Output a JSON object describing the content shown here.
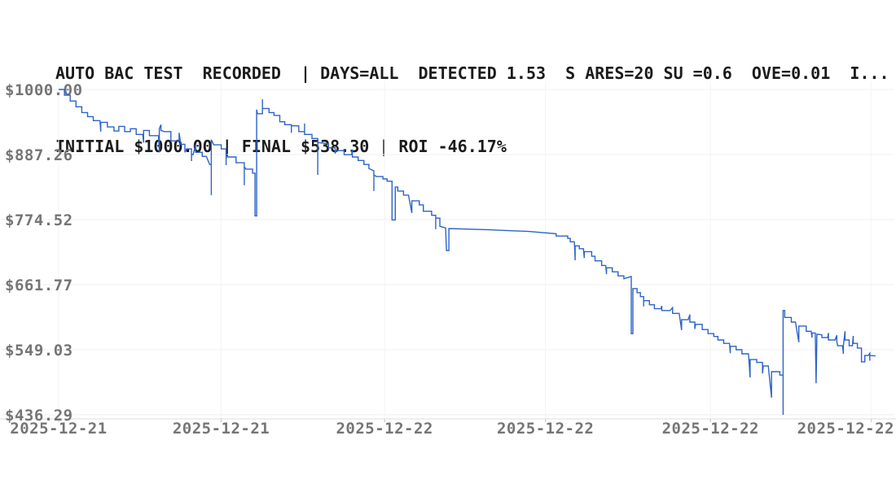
{
  "header": {
    "line1": "AUTO BAC TEST  RECORDED  | DAYS=ALL  DETECTED 1.53  S ARES=20 SU =0.6  OVE=0.01  I...",
    "line2": "INITIAL $1000.00 | FINAL $538.30 | ROI -46.17%",
    "text_color": "#1b1b1b"
  },
  "chart_data": {
    "type": "line",
    "title": "AUTO BAC TEST RECORDED",
    "stats": {
      "days": "ALL",
      "detected": 1.53,
      "ares": 20,
      "su": 0.6,
      "ove": 0.01,
      "initial_usd": 1000.0,
      "final_usd": 538.3,
      "roi_pct": -46.17
    },
    "line_color": "#2d63c8",
    "grid": true,
    "legend": "none",
    "y_axis": {
      "range": [
        436.29,
        1000.0
      ],
      "tick_values": [
        1000.0,
        887.26,
        774.52,
        661.77,
        549.03,
        436.29
      ],
      "tick_labels": [
        "$1000.00",
        "$887.26",
        "$774.52",
        "$661.77",
        "$549.03",
        "$436.29"
      ],
      "label_color": "#757575"
    },
    "x_axis": {
      "tick_labels": [
        "2025-12-21",
        "2025-12-21",
        "2025-12-22",
        "2025-12-22",
        "2025-12-22",
        "2025-12-22"
      ],
      "tick_positions_pct": [
        0,
        19.7,
        39.5,
        59.0,
        79.0,
        98.5
      ],
      "label_color": "#757575"
    },
    "series": [
      {
        "name": "portfolio_value_usd",
        "points": [
          [
            0,
            1000
          ],
          [
            0.7,
            1000
          ],
          [
            0.7,
            990
          ],
          [
            1.4,
            990
          ],
          [
            1.4,
            980
          ],
          [
            2.1,
            980
          ],
          [
            2.1,
            970
          ],
          [
            2.8,
            970
          ],
          [
            2.8,
            960
          ],
          [
            3.5,
            960
          ],
          [
            3.5,
            953
          ],
          [
            4.2,
            953
          ],
          [
            4.2,
            946
          ],
          [
            5.0,
            946
          ],
          [
            5.1,
            927
          ],
          [
            5.1,
            943
          ],
          [
            5.9,
            943
          ],
          [
            5.9,
            935
          ],
          [
            6.7,
            935
          ],
          [
            6.7,
            928
          ],
          [
            7.3,
            928
          ],
          [
            7.3,
            936
          ],
          [
            8.0,
            936
          ],
          [
            8.0,
            927
          ],
          [
            8.7,
            927
          ],
          [
            8.7,
            932
          ],
          [
            9.4,
            932
          ],
          [
            9.4,
            922
          ],
          [
            10.2,
            922
          ],
          [
            10.3,
            908
          ],
          [
            10.3,
            929
          ],
          [
            11.0,
            929
          ],
          [
            11.0,
            920
          ],
          [
            12.1,
            920
          ],
          [
            12.2,
            891
          ],
          [
            12.2,
            932
          ],
          [
            12.4,
            939
          ],
          [
            12.4,
            929
          ],
          [
            12.8,
            927
          ],
          [
            13.6,
            927
          ],
          [
            13.6,
            911
          ],
          [
            14.6,
            911
          ],
          [
            14.6,
            925
          ],
          [
            14.8,
            905
          ],
          [
            15.3,
            905
          ],
          [
            15.3,
            891
          ],
          [
            15.5,
            897
          ],
          [
            16.1,
            897
          ],
          [
            16.1,
            876
          ],
          [
            16.1,
            887
          ],
          [
            16.3,
            887
          ],
          [
            16.6,
            905
          ],
          [
            16.6,
            891
          ],
          [
            17.4,
            891
          ],
          [
            17.4,
            884
          ],
          [
            17.9,
            884
          ],
          [
            18.3,
            870
          ],
          [
            18.5,
            870
          ],
          [
            18.5,
            817
          ],
          [
            18.5,
            913
          ],
          [
            18.8,
            904
          ],
          [
            19.7,
            904
          ],
          [
            19.7,
            897
          ],
          [
            20.3,
            897
          ],
          [
            20.3,
            869
          ],
          [
            20.3,
            883
          ],
          [
            21.5,
            883
          ],
          [
            21.5,
            873
          ],
          [
            22.5,
            873
          ],
          [
            22.5,
            834
          ],
          [
            22.5,
            866
          ],
          [
            22.7,
            862
          ],
          [
            23.5,
            862
          ],
          [
            23.5,
            855
          ],
          [
            23.8,
            855
          ],
          [
            23.8,
            781
          ],
          [
            24.0,
            781
          ],
          [
            24.0,
            965
          ],
          [
            24.1,
            958
          ],
          [
            24.7,
            958
          ],
          [
            24.7,
            983
          ],
          [
            24.7,
            967
          ],
          [
            25.5,
            967
          ],
          [
            25.5,
            960
          ],
          [
            26.1,
            960
          ],
          [
            26.1,
            955
          ],
          [
            26.8,
            955
          ],
          [
            26.8,
            944
          ],
          [
            27.4,
            944
          ],
          [
            27.4,
            939
          ],
          [
            28.2,
            939
          ],
          [
            28.2,
            925
          ],
          [
            28.2,
            937
          ],
          [
            29.1,
            937
          ],
          [
            29.1,
            927
          ],
          [
            29.8,
            927
          ],
          [
            29.8,
            941
          ],
          [
            29.8,
            922
          ],
          [
            30.7,
            922
          ],
          [
            30.7,
            915
          ],
          [
            31.4,
            915
          ],
          [
            31.4,
            852
          ],
          [
            31.4,
            908
          ],
          [
            32.7,
            906
          ],
          [
            32.7,
            899
          ],
          [
            33.5,
            899
          ],
          [
            33.5,
            889
          ],
          [
            33.6,
            894
          ],
          [
            34.6,
            894
          ],
          [
            34.6,
            887
          ],
          [
            35.5,
            887
          ],
          [
            35.6,
            896
          ],
          [
            35.6,
            883
          ],
          [
            36.3,
            883
          ],
          [
            36.3,
            877
          ],
          [
            37.0,
            877
          ],
          [
            37.0,
            870
          ],
          [
            37.6,
            870
          ],
          [
            37.6,
            863
          ],
          [
            38.2,
            859
          ],
          [
            38.2,
            824
          ],
          [
            38.2,
            852
          ],
          [
            38.5,
            849
          ],
          [
            39.3,
            849
          ],
          [
            39.3,
            845
          ],
          [
            39.8,
            845
          ],
          [
            39.8,
            841
          ],
          [
            40.4,
            841
          ],
          [
            40.4,
            774
          ],
          [
            40.8,
            774
          ],
          [
            40.8,
            831
          ],
          [
            41.1,
            831
          ],
          [
            41.1,
            824
          ],
          [
            41.8,
            824
          ],
          [
            41.8,
            817
          ],
          [
            42.4,
            817
          ],
          [
            42.8,
            786
          ],
          [
            42.8,
            807
          ],
          [
            43.7,
            807
          ],
          [
            43.7,
            800
          ],
          [
            44.2,
            800
          ],
          [
            44.2,
            789
          ],
          [
            45.2,
            789
          ],
          [
            45.2,
            782
          ],
          [
            45.7,
            782
          ],
          [
            45.7,
            758
          ],
          [
            45.7,
            777
          ],
          [
            46.2,
            777
          ],
          [
            46.2,
            763
          ],
          [
            46.9,
            760
          ],
          [
            47.0,
            721
          ],
          [
            47.3,
            721
          ],
          [
            47.3,
            759
          ],
          [
            52.0,
            757
          ],
          [
            57.0,
            754
          ],
          [
            60.3,
            750
          ],
          [
            60.3,
            746
          ],
          [
            61.7,
            746
          ],
          [
            61.7,
            742
          ],
          [
            62.0,
            742
          ],
          [
            62.0,
            736
          ],
          [
            62.5,
            736
          ],
          [
            62.6,
            704
          ],
          [
            62.6,
            729
          ],
          [
            63.1,
            729
          ],
          [
            63.1,
            724
          ],
          [
            63.6,
            724
          ],
          [
            63.7,
            708
          ],
          [
            63.7,
            719
          ],
          [
            64.6,
            719
          ],
          [
            64.6,
            711
          ],
          [
            65.0,
            711
          ],
          [
            65.0,
            703
          ],
          [
            65.8,
            703
          ],
          [
            65.8,
            695
          ],
          [
            66.3,
            695
          ],
          [
            66.4,
            680
          ],
          [
            66.4,
            691
          ],
          [
            67.1,
            691
          ],
          [
            67.1,
            684
          ],
          [
            67.8,
            684
          ],
          [
            67.8,
            677
          ],
          [
            68.5,
            677
          ],
          [
            68.5,
            672
          ],
          [
            69.4,
            676
          ],
          [
            69.4,
            577
          ],
          [
            69.6,
            577
          ],
          [
            69.6,
            655
          ],
          [
            70.1,
            655
          ],
          [
            70.1,
            648
          ],
          [
            70.5,
            648
          ],
          [
            70.5,
            641
          ],
          [
            70.9,
            641
          ],
          [
            70.9,
            624
          ],
          [
            70.9,
            634
          ],
          [
            71.6,
            634
          ],
          [
            71.6,
            627
          ],
          [
            72.2,
            627
          ],
          [
            72.2,
            620
          ],
          [
            73.0,
            620
          ],
          [
            73.1,
            625
          ],
          [
            73.1,
            617
          ],
          [
            74.1,
            617
          ],
          [
            74.4,
            622
          ],
          [
            74.4,
            612
          ],
          [
            75.2,
            612
          ],
          [
            75.5,
            583
          ],
          [
            75.5,
            601
          ],
          [
            76.3,
            601
          ],
          [
            76.5,
            610
          ],
          [
            76.5,
            597
          ],
          [
            77.1,
            597
          ],
          [
            77.1,
            585
          ],
          [
            77.2,
            593
          ],
          [
            78.0,
            593
          ],
          [
            78.0,
            584
          ],
          [
            78.7,
            584
          ],
          [
            78.7,
            577
          ],
          [
            79.4,
            577
          ],
          [
            79.4,
            572
          ],
          [
            79.9,
            572
          ],
          [
            79.9,
            566
          ],
          [
            80.6,
            566
          ],
          [
            80.6,
            560
          ],
          [
            81.3,
            560
          ],
          [
            81.4,
            543
          ],
          [
            81.4,
            555
          ],
          [
            82.1,
            555
          ],
          [
            82.1,
            549
          ],
          [
            82.8,
            549
          ],
          [
            82.8,
            542
          ],
          [
            83.6,
            542
          ],
          [
            83.8,
            501
          ],
          [
            83.8,
            532
          ],
          [
            84.6,
            532
          ],
          [
            84.6,
            527
          ],
          [
            85.3,
            527
          ],
          [
            85.3,
            508
          ],
          [
            85.4,
            521
          ],
          [
            86.0,
            521
          ],
          [
            86.4,
            466
          ],
          [
            86.4,
            511
          ],
          [
            87.4,
            511
          ],
          [
            87.4,
            505
          ],
          [
            87.8,
            505
          ],
          [
            87.8,
            436.3
          ],
          [
            87.8,
            617
          ],
          [
            88.0,
            617
          ],
          [
            88.0,
            605
          ],
          [
            88.8,
            605
          ],
          [
            88.8,
            597
          ],
          [
            89.3,
            597
          ],
          [
            89.7,
            562
          ],
          [
            89.7,
            590
          ],
          [
            90.6,
            590
          ],
          [
            90.6,
            581
          ],
          [
            91.2,
            581
          ],
          [
            91.3,
            570
          ],
          [
            91.3,
            578
          ],
          [
            91.7,
            578
          ],
          [
            91.8,
            491
          ],
          [
            91.9,
            576
          ],
          [
            92.5,
            575
          ],
          [
            92.5,
            570
          ],
          [
            93.2,
            570
          ],
          [
            93.3,
            578
          ],
          [
            93.3,
            566
          ],
          [
            94.1,
            566
          ],
          [
            94.3,
            574
          ],
          [
            94.3,
            564
          ],
          [
            94.4,
            556
          ],
          [
            95.0,
            556
          ],
          [
            95.1,
            542
          ],
          [
            95.1,
            556
          ],
          [
            95.3,
            581
          ],
          [
            95.3,
            566
          ],
          [
            95.8,
            566
          ],
          [
            95.8,
            556
          ],
          [
            96.2,
            556
          ],
          [
            96.3,
            573
          ],
          [
            96.3,
            560
          ],
          [
            96.8,
            560
          ],
          [
            96.8,
            552
          ],
          [
            97.3,
            552
          ],
          [
            97.3,
            528
          ],
          [
            97.7,
            528
          ],
          [
            97.7,
            539
          ],
          [
            98.1,
            539
          ],
          [
            98.3,
            543
          ],
          [
            98.3,
            530
          ],
          [
            98.3,
            539
          ],
          [
            99.0,
            538.3
          ]
        ]
      }
    ]
  },
  "style_colors": {
    "grid_h": "#efefef",
    "grid_v": "#f3f3f3",
    "axis_line": "#dcdcdc",
    "tick": "#c0c0c0"
  }
}
